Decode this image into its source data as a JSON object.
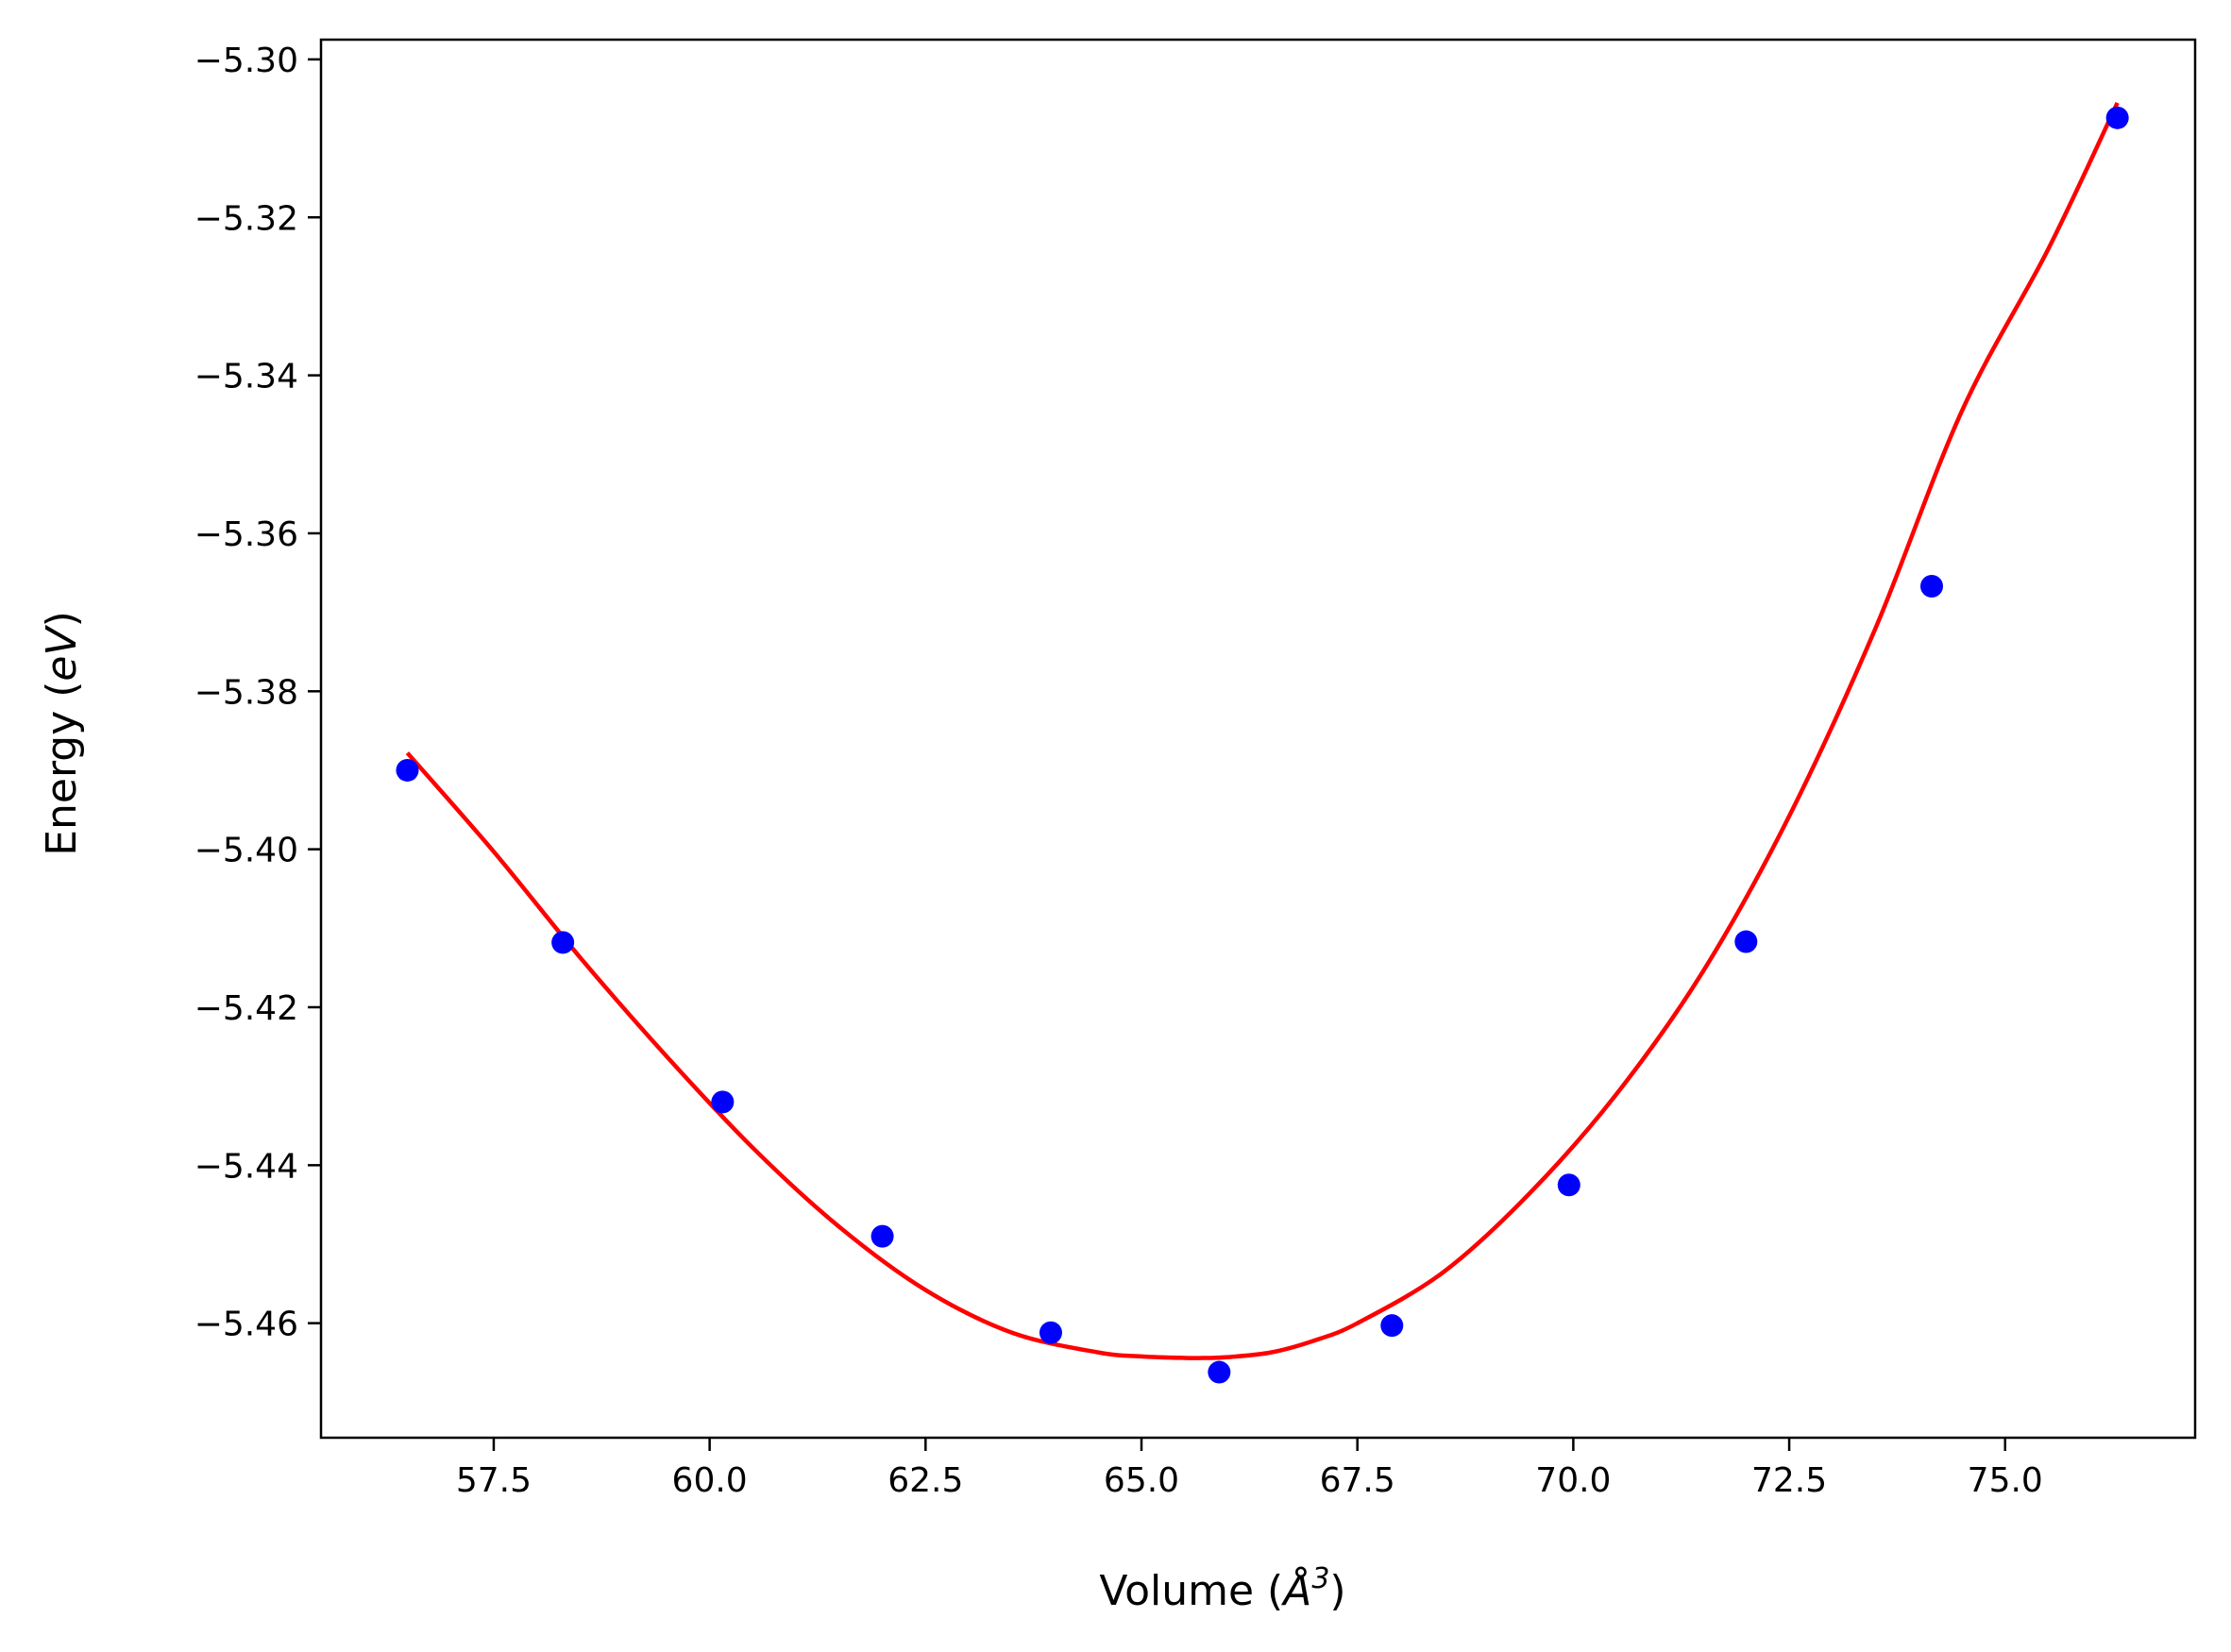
{
  "chart_data": {
    "type": "scatter",
    "title": "",
    "xlabel_parts": [
      "Volume (",
      "Å",
      "3",
      ")"
    ],
    "ylabel_parts": [
      "Energy (",
      "eV",
      ")"
    ],
    "xlim": [
      55.5,
      77.2
    ],
    "ylim": [
      -5.4745,
      -5.2975
    ],
    "grid": false,
    "x_ticks": [
      57.5,
      60.0,
      62.5,
      65.0,
      67.5,
      70.0,
      72.5,
      75.0
    ],
    "x_tick_labels": [
      "57.5",
      "60.0",
      "62.5",
      "65.0",
      "67.5",
      "70.0",
      "72.5",
      "75.0"
    ],
    "y_ticks": [
      -5.46,
      -5.44,
      -5.42,
      -5.4,
      -5.38,
      -5.36,
      -5.34,
      -5.32,
      -5.3
    ],
    "y_tick_labels": [
      "−5.46",
      "−5.44",
      "−5.42",
      "−5.40",
      "−5.38",
      "−5.36",
      "−5.34",
      "−5.32",
      "−5.30"
    ],
    "series": [
      {
        "kind": "points",
        "color": "#0000ff",
        "x": [
          56.5,
          58.3,
          60.15,
          62.0,
          63.95,
          65.9,
          67.9,
          69.95,
          72.0,
          74.15,
          76.3
        ],
        "y": [
          -5.39,
          -5.4118,
          -5.432,
          -5.449,
          -5.4612,
          -5.4662,
          -5.4603,
          -5.4425,
          -5.4117,
          -5.3667,
          -5.3074
        ]
      },
      {
        "kind": "fit-curve",
        "color": "#ff0000",
        "x": [
          56.5,
          57.5,
          58.5,
          59.5,
          60.5,
          61.5,
          62.5,
          63.5,
          64.5,
          65.0,
          65.5,
          65.75,
          66.0,
          66.5,
          67.0,
          67.5,
          68.5,
          69.5,
          70.5,
          71.5,
          72.5,
          73.5,
          74.5,
          75.5,
          76.3
        ],
        "y": [
          -5.3878,
          -5.4003,
          -5.4137,
          -5.4262,
          -5.4378,
          -5.4478,
          -5.4558,
          -5.4612,
          -5.4637,
          -5.4642,
          -5.4644,
          -5.4644,
          -5.4643,
          -5.4637,
          -5.4622,
          -5.46,
          -5.4535,
          -5.4435,
          -5.431,
          -5.4155,
          -5.3958,
          -5.372,
          -5.3445,
          -5.324,
          -5.3055
        ]
      }
    ]
  }
}
